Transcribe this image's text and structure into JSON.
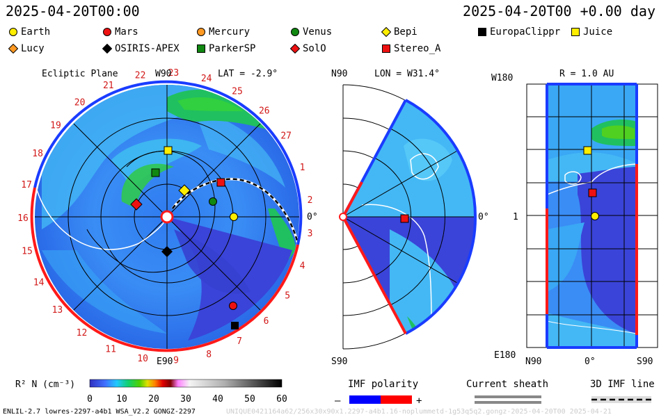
{
  "header": {
    "left_time": "2025-04-20T00:00",
    "right_time": "2025-04-20T00 +0.00 day"
  },
  "legend": [
    {
      "name": "Earth",
      "shape": "circle",
      "color": "#ffee00"
    },
    {
      "name": "Mars",
      "shape": "circle",
      "color": "#ee1111"
    },
    {
      "name": "Mercury",
      "shape": "circle",
      "color": "#ff9922"
    },
    {
      "name": "Venus",
      "shape": "circle",
      "color": "#118811"
    },
    {
      "name": "Bepi",
      "shape": "diamond",
      "color": "#ffee00"
    },
    {
      "name": "EuropaClippr",
      "shape": "square",
      "color": "#000000"
    },
    {
      "name": "Juice",
      "shape": "square",
      "color": "#ffee00"
    },
    {
      "name": "Lucy",
      "shape": "diamond",
      "color": "#ff9922"
    },
    {
      "name": "OSIRIS-APEX",
      "shape": "diamond",
      "color": "#000000"
    },
    {
      "name": "ParkerSP",
      "shape": "square",
      "color": "#118811"
    },
    {
      "name": "SolO",
      "shape": "diamond",
      "color": "#ee1111"
    },
    {
      "name": "Stereo_A",
      "shape": "square",
      "color": "#ee1111"
    }
  ],
  "panels": {
    "ecliptic": {
      "title": "Ecliptic Plane",
      "lat_label": "LAT = -2.9°",
      "top": "W90",
      "bottom": "E90",
      "right": "0°"
    },
    "meridional": {
      "top": "N90",
      "bottom": "S90",
      "lon_label": "LON = W31.4°",
      "right": "0°"
    },
    "sphere": {
      "r_label": "R = 1.0 AU",
      "top_left": "W180",
      "mid_left": "1",
      "bottom_left": "E180",
      "x_left": "N90",
      "x_mid": "0°",
      "x_right": "S90"
    }
  },
  "chart_data": {
    "type": "heatmap",
    "variable": "R² N (cm⁻³)",
    "carrington_rotation_labels": [
      "1",
      "2",
      "3",
      "4",
      "5",
      "6",
      "7",
      "8",
      "9",
      "10",
      "11",
      "12",
      "13",
      "14",
      "15",
      "16",
      "17",
      "18",
      "19",
      "20",
      "21",
      "22",
      "23",
      "24",
      "25",
      "26",
      "27"
    ],
    "colorbar": {
      "label": "R² N (cm⁻³)",
      "ticks": [
        0,
        10,
        20,
        30,
        40,
        50,
        60
      ],
      "range": [
        0,
        60
      ]
    },
    "imf_polarity": {
      "label": "IMF polarity",
      "minus": "–",
      "plus": "+",
      "neg_color": "#0000ff",
      "pos_color": "#ff0000"
    },
    "current_sheath": {
      "label": "Current sheath"
    },
    "imf_line": {
      "label": "3D IMF line"
    }
  },
  "footer": {
    "left": "ENLIL-2.7 lowres-2297-a4b1 WSA_V2.2 GONGZ-2297",
    "right": "UNIQUE0421164a62/256x30x90x1.2297-a4b1.16-noplummetd-1g53q5q2.gongz-2025-04-20T00   2025-04-21"
  }
}
